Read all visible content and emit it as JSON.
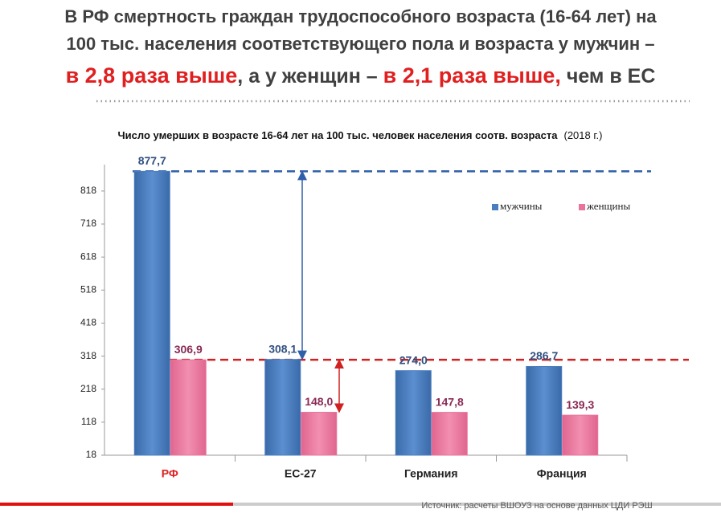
{
  "header": {
    "line1": "В РФ смертность граждан трудоспособного возраста (16-64 лет) на",
    "line2": "100 тыс. населения соответствующего пола и возраста у мужчин –",
    "red1": "в 2,8 раза выше",
    "mid": ", а у женщин – ",
    "red2": "в 2,1 раза выше,",
    "end": " чем в ЕС"
  },
  "chart_data": {
    "type": "bar",
    "title": "Число умерших в возрасте 16-64 лет на 100 тыс. человек населения соотв. возраста",
    "subtitle": "(2018 г.)",
    "categories": [
      "РФ",
      "ЕС-27",
      "Германия",
      "Франция"
    ],
    "series": [
      {
        "name": "мужчины",
        "color": "#4a7ebf",
        "values": [
          877.7,
          308.1,
          274.0,
          286.7
        ],
        "value_labels": [
          "877,7",
          "308,1",
          "274,0",
          "286,7"
        ],
        "label_color": "#2f4f7f"
      },
      {
        "name": "женщины",
        "color": "#e8749b",
        "values": [
          306.9,
          148.0,
          147.8,
          139.3
        ],
        "value_labels": [
          "306,9",
          "148,0",
          "147,8",
          "139,3"
        ],
        "label_color": "#8a2a55"
      }
    ],
    "ylim": [
      18,
      898
    ],
    "yticks": [
      18,
      118,
      218,
      318,
      418,
      518,
      618,
      718,
      818
    ],
    "grid": false,
    "legend": "top-right"
  },
  "source": "Источник: расчеты ВШОУЗ на основе данных ЦДИ РЭШ"
}
